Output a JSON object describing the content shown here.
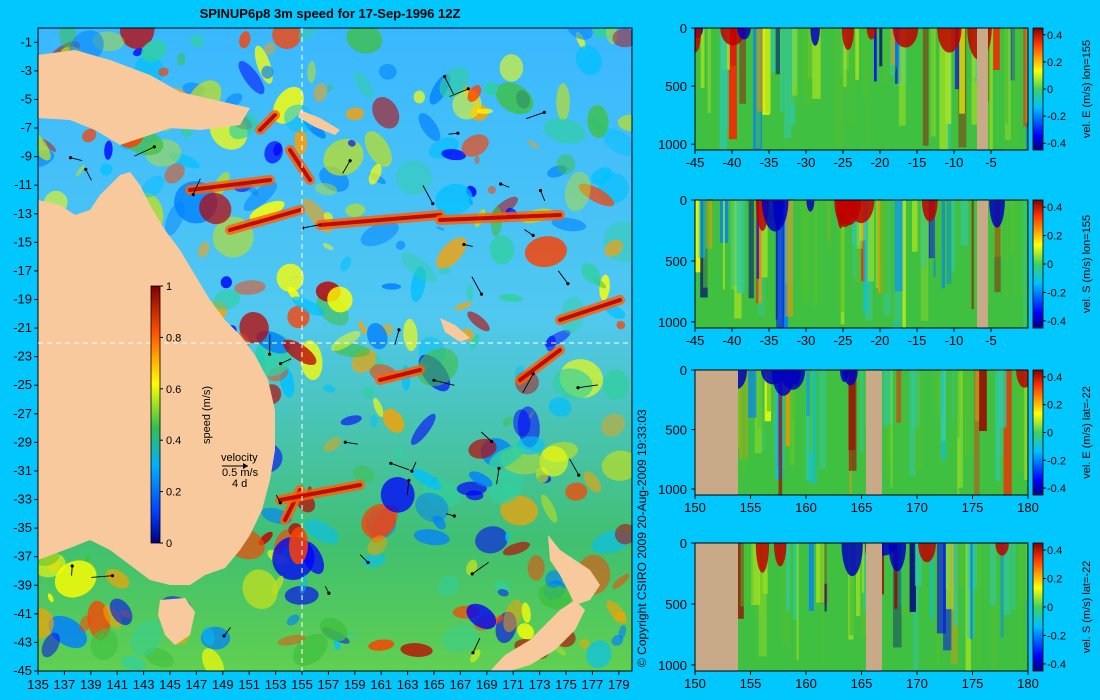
{
  "title": "SPINUP6p8 3m speed for 17-Sep-1996 12Z",
  "copyright": "© Copyright CSIRO 2009   20-Aug-2009 19:33:03",
  "colors": {
    "background": "#00c8ff",
    "land": "#f9c99e",
    "section_land": "#c8aa88",
    "gridline": "#ffffff"
  },
  "chart_data": [
    {
      "type": "heatmap",
      "title": "SPINUP6p8 3m speed for 17-Sep-1996 12Z",
      "x_ticks": [
        "135",
        "137",
        "139",
        "141",
        "143",
        "145",
        "147",
        "149",
        "151",
        "153",
        "155",
        "157",
        "159",
        "161",
        "163",
        "165",
        "167",
        "169",
        "171",
        "173",
        "175",
        "177",
        "179"
      ],
      "y_ticks": [
        "-1",
        "-3",
        "-5",
        "-7",
        "-9",
        "-11",
        "-13",
        "-15",
        "-17",
        "-19",
        "-21",
        "-23",
        "-25",
        "-27",
        "-29",
        "-31",
        "-33",
        "-35",
        "-37",
        "-39",
        "-41",
        "-43",
        "-45"
      ],
      "xlim": [
        135,
        180
      ],
      "ylim": [
        -45,
        0
      ],
      "section_lines": {
        "lon": 155,
        "lat": -22
      },
      "colorbar": {
        "label": "speed (m/s)",
        "ticks": [
          "1",
          "0.8",
          "0.6",
          "0.4",
          "0.2",
          "0"
        ],
        "range": [
          0,
          1
        ]
      },
      "velocity_key": {
        "label": "velocity",
        "value": "0.5 m/s",
        "scale": "4 d"
      }
    },
    {
      "type": "heatmap",
      "x_ticks": [
        "-45",
        "-40",
        "-35",
        "-30",
        "-25",
        "-20",
        "-15",
        "-10",
        "-5"
      ],
      "y_ticks": [
        "0",
        "500",
        "1000"
      ],
      "xlim": [
        -45,
        0
      ],
      "ylim": [
        1050,
        0
      ],
      "colorbar": {
        "label": "vel. E (m/s) lon=155",
        "ticks": [
          "0.4",
          "0.2",
          "0",
          "-0.2",
          "-0.4"
        ],
        "range": [
          -0.45,
          0.45
        ]
      }
    },
    {
      "type": "heatmap",
      "x_ticks": [
        "-45",
        "-40",
        "-35",
        "-30",
        "-25",
        "-20",
        "-15",
        "-10",
        "-5"
      ],
      "y_ticks": [
        "0",
        "500",
        "1000"
      ],
      "xlim": [
        -45,
        0
      ],
      "ylim": [
        1050,
        0
      ],
      "colorbar": {
        "label": "vel. S (m/s) lon=155",
        "ticks": [
          "0.4",
          "0.2",
          "0",
          "-0.2",
          "-0.4"
        ],
        "range": [
          -0.45,
          0.45
        ]
      }
    },
    {
      "type": "heatmap",
      "x_ticks": [
        "150",
        "155",
        "160",
        "165",
        "170",
        "175",
        "180"
      ],
      "y_ticks": [
        "0",
        "500",
        "1000"
      ],
      "xlim": [
        150,
        180
      ],
      "ylim": [
        1050,
        0
      ],
      "colorbar": {
        "label": "vel. E (m/s) lat=-22",
        "ticks": [
          "0.4",
          "0.2",
          "0",
          "-0.2",
          "-0.4"
        ],
        "range": [
          -0.45,
          0.45
        ]
      }
    },
    {
      "type": "heatmap",
      "x_ticks": [
        "150",
        "155",
        "160",
        "165",
        "170",
        "175",
        "180"
      ],
      "y_ticks": [
        "0",
        "500",
        "1000"
      ],
      "xlim": [
        150,
        180
      ],
      "ylim": [
        1050,
        0
      ],
      "colorbar": {
        "label": "vel. S (m/s) lat=-22",
        "ticks": [
          "0.4",
          "0.2",
          "0",
          "-0.2",
          "-0.4"
        ],
        "range": [
          -0.45,
          0.45
        ]
      }
    }
  ]
}
